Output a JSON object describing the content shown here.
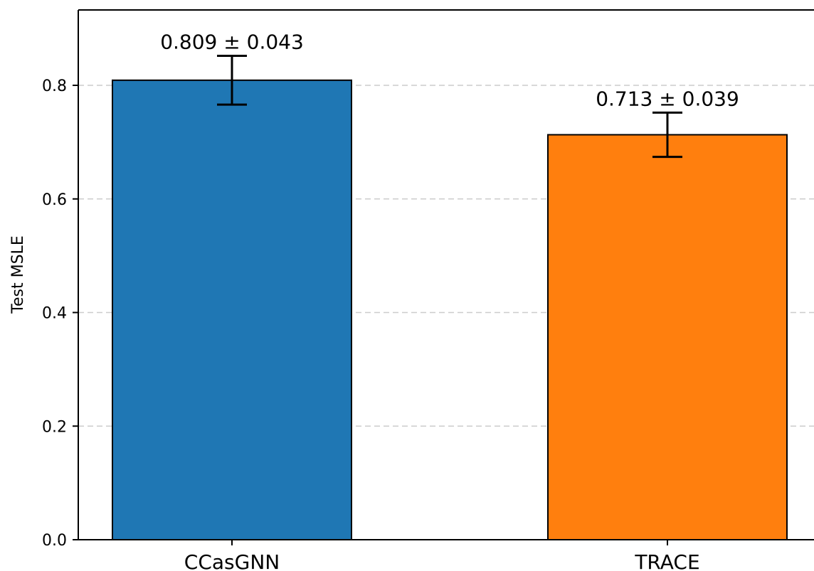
{
  "chart_data": {
    "type": "bar",
    "title": "",
    "xlabel": "",
    "ylabel": "Test MSLE",
    "ylim": [
      0,
      0.93
    ],
    "yticks": [
      "0.0",
      "0.2",
      "0.4",
      "0.6",
      "0.8"
    ],
    "grid": true,
    "categories": [
      "CCasGNN",
      "TRACE"
    ],
    "values": [
      0.809,
      0.713
    ],
    "errors": [
      0.043,
      0.039
    ],
    "data_labels": [
      "0.809 ± 0.043",
      "0.713 ± 0.039"
    ],
    "colors": [
      "#1f77b4",
      "#ff7f0e"
    ]
  }
}
